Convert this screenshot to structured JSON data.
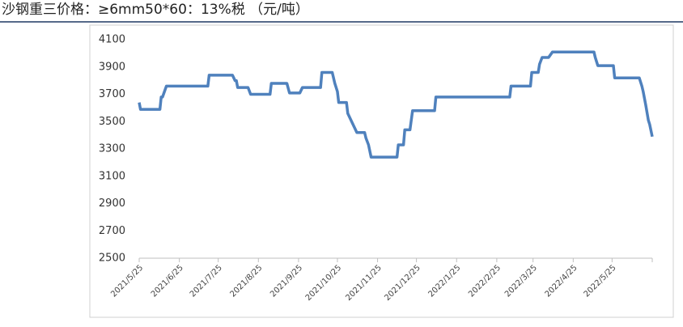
{
  "chart_data": {
    "type": "line",
    "title": "沙钢重三价格：≥6mm50*60：13%税 （元/吨）",
    "x": [
      "2021/5/25",
      "2021/5/26",
      "2021/6/10",
      "2021/6/11",
      "2021/6/12",
      "2021/6/15",
      "2021/7/17",
      "2021/7/18",
      "2021/8/5",
      "2021/8/7",
      "2021/8/8",
      "2021/8/9",
      "2021/8/17",
      "2021/8/19",
      "2021/9/3",
      "2021/9/4",
      "2021/9/16",
      "2021/9/18",
      "2021/9/26",
      "2021/9/28",
      "2021/10/12",
      "2021/10/13",
      "2021/10/21",
      "2021/10/23",
      "2021/10/25",
      "2021/10/26",
      "2021/11/1",
      "2021/11/2",
      "2021/11/5",
      "2021/11/9",
      "2021/11/15",
      "2021/11/16",
      "2021/11/18",
      "2021/11/20",
      "2021/12/10",
      "2021/12/11",
      "2021/12/15",
      "2021/12/16",
      "2021/12/20",
      "2021/12/22",
      "2022/1/8",
      "2022/1/9",
      "2022/3/7",
      "2022/3/8",
      "2022/3/23",
      "2022/3/24",
      "2022/3/29",
      "2022/3/30",
      "2022/4/1",
      "2022/4/6",
      "2022/4/9",
      "2022/5/11",
      "2022/5/12",
      "2022/5/14",
      "2022/5/26",
      "2022/5/27",
      "2022/6/15",
      "2022/6/17",
      "2022/6/18",
      "2022/6/20",
      "2022/6/22",
      "2022/6/23",
      "2022/6/25"
    ],
    "series": [
      {
        "name": "沙钢重三价格",
        "color": "#4f81bd",
        "values": [
          3640,
          3590,
          3590,
          3680,
          3680,
          3760,
          3760,
          3840,
          3840,
          3800,
          3800,
          3750,
          3750,
          3700,
          3700,
          3780,
          3780,
          3710,
          3710,
          3750,
          3750,
          3860,
          3860,
          3780,
          3720,
          3640,
          3640,
          3560,
          3500,
          3420,
          3420,
          3380,
          3330,
          3240,
          3240,
          3330,
          3330,
          3440,
          3440,
          3580,
          3580,
          3680,
          3680,
          3760,
          3760,
          3860,
          3860,
          3920,
          3970,
          3970,
          4010,
          4010,
          3970,
          3910,
          3910,
          3820,
          3820,
          3760,
          3720,
          3620,
          3510,
          3480,
          3390
        ]
      }
    ],
    "xlim": [
      "2021/5/25",
      "2022/6/25"
    ],
    "xticks": [
      "2021/5/25",
      "2021/6/25",
      "2021/7/25",
      "2021/8/25",
      "2021/9/25",
      "2021/10/25",
      "2021/11/25",
      "2021/12/25",
      "2022/1/25",
      "2022/2/25",
      "2022/3/25",
      "2022/4/25",
      "2022/5/25"
    ],
    "ylim": [
      2500,
      4100
    ],
    "yticks": [
      2500,
      2700,
      2900,
      3100,
      3300,
      3500,
      3700,
      3900,
      4100
    ]
  }
}
